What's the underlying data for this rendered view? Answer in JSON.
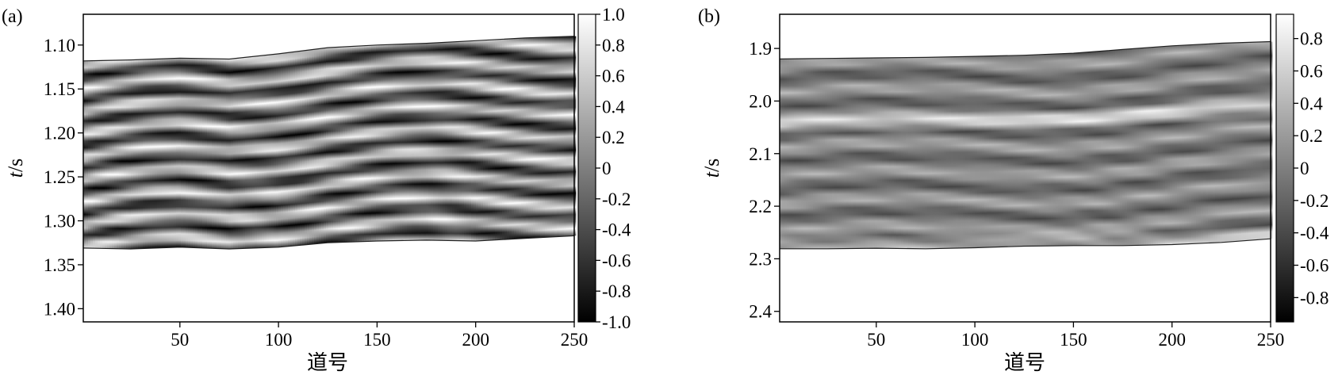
{
  "chart_data": [
    {
      "type": "heatmap",
      "panel_label": "(a)",
      "xlabel": "道号",
      "ylabel_italic": "t",
      "ylabel_rest": "/s",
      "x_ticks": [
        50,
        100,
        150,
        200,
        250
      ],
      "xlim": [
        1,
        250
      ],
      "y_ticks": [
        "1.10",
        "1.15",
        "1.20",
        "1.25",
        "1.30",
        "1.35",
        "1.40"
      ],
      "ylim": [
        1.415,
        1.065
      ],
      "colorbar_ticks": [
        "1.0",
        "0.8",
        "0.6",
        "0.4",
        "0.2",
        "0",
        "-0.2",
        "-0.4",
        "-0.6",
        "-0.8",
        "-1.0"
      ],
      "colorbar_range": [
        -1.0,
        1.0
      ],
      "colormap": "gray",
      "boundary_x": [
        1,
        25,
        50,
        75,
        100,
        125,
        150,
        175,
        200,
        225,
        250
      ],
      "top_boundary_s": [
        1.118,
        1.117,
        1.115,
        1.116,
        1.11,
        1.103,
        1.1,
        1.098,
        1.095,
        1.092,
        1.09
      ],
      "bottom_boundary_s": [
        1.331,
        1.332,
        1.33,
        1.332,
        1.33,
        1.325,
        1.323,
        1.322,
        1.323,
        1.32,
        1.317
      ]
    },
    {
      "type": "heatmap",
      "panel_label": "(b)",
      "xlabel": "道号",
      "ylabel_italic": "t",
      "ylabel_rest": "/s",
      "x_ticks": [
        50,
        100,
        150,
        200,
        250
      ],
      "xlim": [
        1,
        250
      ],
      "y_ticks": [
        "1.9",
        "2.0",
        "2.1",
        "2.2",
        "2.3",
        "2.4"
      ],
      "ylim": [
        2.42,
        1.835
      ],
      "colorbar_ticks": [
        "0.8",
        "0.6",
        "0.4",
        "0.2",
        "0",
        "-0.2",
        "-0.4",
        "-0.6",
        "-0.8"
      ],
      "colorbar_range": [
        -0.95,
        0.95
      ],
      "colormap": "gray",
      "boundary_x": [
        1,
        25,
        50,
        75,
        100,
        125,
        150,
        175,
        200,
        225,
        250
      ],
      "top_boundary_s": [
        1.92,
        1.919,
        1.918,
        1.917,
        1.915,
        1.913,
        1.909,
        1.902,
        1.895,
        1.89,
        1.887
      ],
      "bottom_boundary_s": [
        2.281,
        2.281,
        2.28,
        2.281,
        2.279,
        2.276,
        2.275,
        2.275,
        2.273,
        2.269,
        2.262
      ]
    }
  ]
}
